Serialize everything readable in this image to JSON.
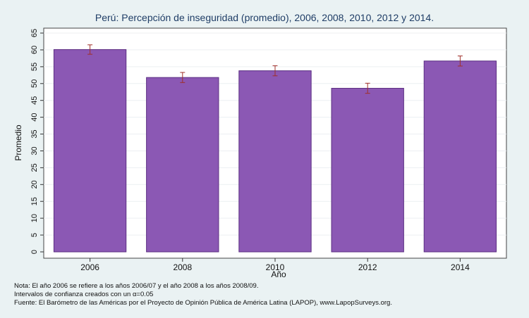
{
  "chart_data": {
    "type": "bar",
    "title": "Perú: Percepción de inseguridad (promedio), 2006, 2008, 2010, 2012 y 2014.",
    "xlabel": "Año",
    "ylabel": "Promedio",
    "categories": [
      "2006",
      "2008",
      "2010",
      "2012",
      "2014"
    ],
    "values": [
      60.1,
      51.8,
      53.8,
      48.6,
      56.7
    ],
    "ci_low": [
      58.7,
      50.3,
      52.3,
      47.1,
      55.2
    ],
    "ci_high": [
      61.5,
      53.3,
      55.3,
      50.1,
      58.2
    ],
    "ylim": [
      0,
      65
    ],
    "yticks": [
      0,
      5,
      10,
      15,
      20,
      25,
      30,
      35,
      40,
      45,
      50,
      55,
      60,
      65
    ],
    "grid": true,
    "bar_color": "#8b58b4",
    "bar_edge_color": "#5b2e82",
    "errorbar_color": "#a0302a"
  },
  "notes": {
    "line1": "Nota: El año 2006 se refiere a los años 2006/07 y el año 2008 a los años 2008/09.",
    "line2": "Intervalos de confianza creados con un α=0.05",
    "line3": "Fuente: El Barómetro de las Américas por el Proyecto de Opinión Pública de América Latina (LAPOP), www.LapopSurveys.org."
  }
}
